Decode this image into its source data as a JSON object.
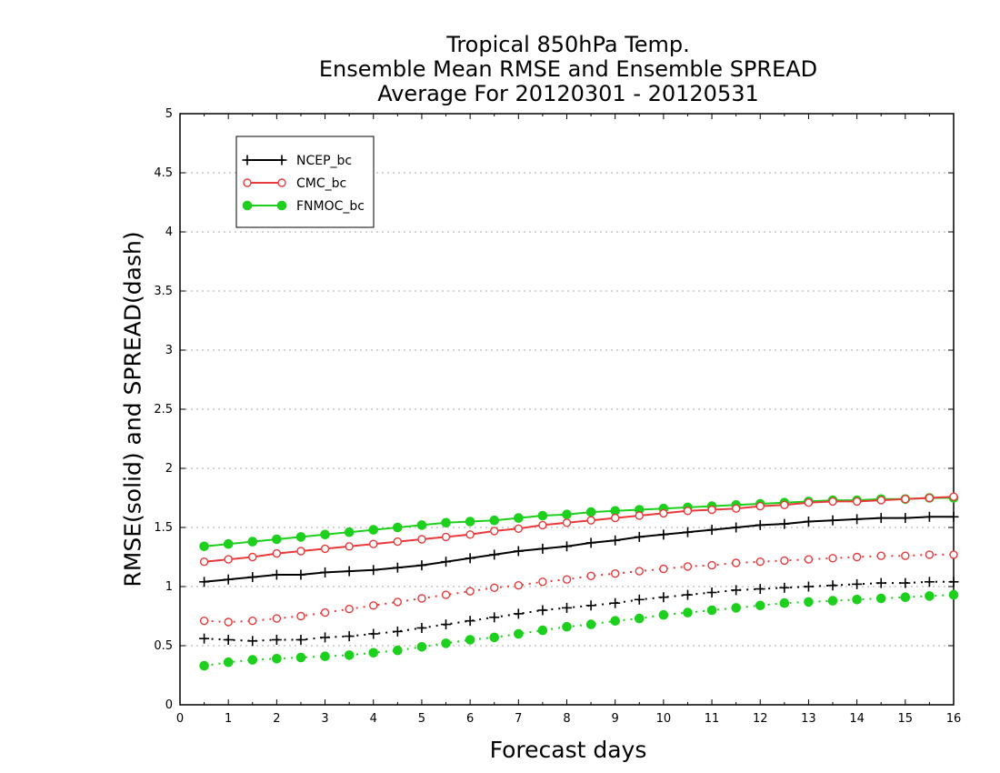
{
  "chart_data": {
    "type": "line",
    "title": [
      "Tropical 850hPa Temp.",
      "Ensemble Mean RMSE and Ensemble SPREAD",
      "Average For 20120301 - 20120531"
    ],
    "xlabel": "Forecast days",
    "ylabel": "RMSE(solid) and SPREAD(dash)",
    "xlim": [
      0,
      16
    ],
    "ylim": [
      0,
      5
    ],
    "x_ticks": [
      "0",
      "1",
      "2",
      "3",
      "4",
      "5",
      "6",
      "7",
      "8",
      "9",
      "10",
      "11",
      "12",
      "13",
      "14",
      "15",
      "16"
    ],
    "y_ticks": [
      "0",
      "0.5",
      "1",
      "1.5",
      "2",
      "2.5",
      "3",
      "3.5",
      "4",
      "4.5",
      "5"
    ],
    "grid": "horizontal dotted",
    "legend_placement": "top-left",
    "x": [
      0.5,
      1,
      1.5,
      2,
      2.5,
      3,
      3.5,
      4,
      4.5,
      5,
      5.5,
      6,
      6.5,
      7,
      7.5,
      8,
      8.5,
      9,
      9.5,
      10,
      10.5,
      11,
      11.5,
      12,
      12.5,
      13,
      13.5,
      14,
      14.5,
      15,
      15.5,
      16
    ],
    "series": [
      {
        "name": "NCEP_bc",
        "color": "#000000",
        "marker": "plus",
        "rmse": [
          1.04,
          1.06,
          1.08,
          1.1,
          1.1,
          1.12,
          1.13,
          1.14,
          1.16,
          1.18,
          1.21,
          1.24,
          1.27,
          1.3,
          1.32,
          1.34,
          1.37,
          1.39,
          1.42,
          1.44,
          1.46,
          1.48,
          1.5,
          1.52,
          1.53,
          1.55,
          1.56,
          1.57,
          1.58,
          1.58,
          1.59,
          1.59
        ],
        "spread": [
          0.56,
          0.55,
          0.54,
          0.55,
          0.55,
          0.57,
          0.58,
          0.6,
          0.62,
          0.65,
          0.68,
          0.71,
          0.74,
          0.77,
          0.8,
          0.82,
          0.84,
          0.86,
          0.89,
          0.91,
          0.93,
          0.95,
          0.97,
          0.98,
          0.99,
          1.0,
          1.01,
          1.02,
          1.03,
          1.03,
          1.04,
          1.04
        ]
      },
      {
        "name": "CMC_bc",
        "color": "#e8393b",
        "marker": "open-circle",
        "rmse": [
          1.21,
          1.23,
          1.25,
          1.28,
          1.3,
          1.32,
          1.34,
          1.36,
          1.38,
          1.4,
          1.42,
          1.44,
          1.47,
          1.49,
          1.52,
          1.54,
          1.56,
          1.58,
          1.6,
          1.62,
          1.64,
          1.65,
          1.66,
          1.68,
          1.69,
          1.71,
          1.72,
          1.72,
          1.73,
          1.74,
          1.75,
          1.76
        ],
        "spread": [
          0.71,
          0.7,
          0.71,
          0.73,
          0.75,
          0.78,
          0.81,
          0.84,
          0.87,
          0.9,
          0.93,
          0.96,
          0.99,
          1.01,
          1.04,
          1.06,
          1.09,
          1.11,
          1.13,
          1.15,
          1.17,
          1.18,
          1.2,
          1.21,
          1.22,
          1.23,
          1.24,
          1.25,
          1.26,
          1.26,
          1.27,
          1.27
        ]
      },
      {
        "name": "FNMOC_bc",
        "color": "#1dd01d",
        "marker": "filled-circle",
        "rmse": [
          1.34,
          1.36,
          1.38,
          1.4,
          1.42,
          1.44,
          1.46,
          1.48,
          1.5,
          1.52,
          1.54,
          1.55,
          1.56,
          1.58,
          1.6,
          1.61,
          1.63,
          1.64,
          1.65,
          1.66,
          1.67,
          1.68,
          1.69,
          1.7,
          1.71,
          1.72,
          1.73,
          1.73,
          1.74,
          1.74,
          1.75,
          1.75
        ],
        "spread": [
          0.33,
          0.36,
          0.38,
          0.39,
          0.4,
          0.41,
          0.42,
          0.44,
          0.46,
          0.49,
          0.52,
          0.55,
          0.57,
          0.6,
          0.63,
          0.66,
          0.68,
          0.71,
          0.73,
          0.76,
          0.78,
          0.8,
          0.82,
          0.84,
          0.86,
          0.87,
          0.88,
          0.89,
          0.9,
          0.91,
          0.92,
          0.93
        ]
      }
    ]
  }
}
